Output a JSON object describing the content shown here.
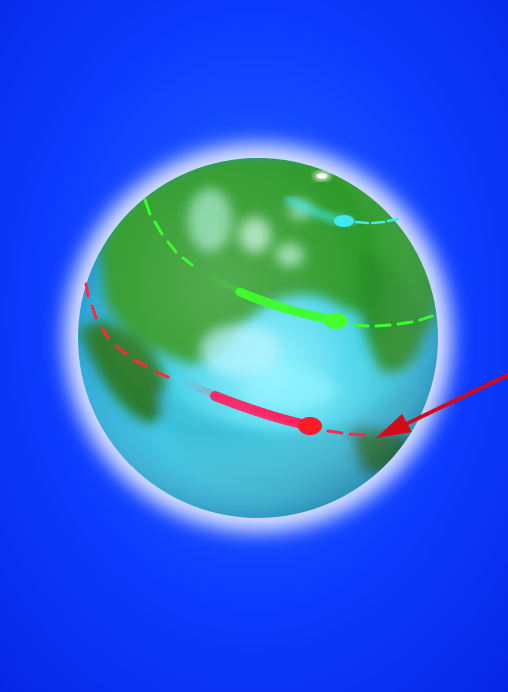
{
  "illustration": {
    "colors": {
      "background": "#0a32ff",
      "background_light": "#1a5cff",
      "globe_ocean": "#3fd4e8",
      "globe_land": "#2e9a2a",
      "trail_green": "#39ff2e",
      "trail_red": "#ff2a5a",
      "trail_cyan": "#40e8f0",
      "arrow": "#d40a1a"
    },
    "subject": "spinning-globe-with-orbit-trails-and-arrow"
  }
}
